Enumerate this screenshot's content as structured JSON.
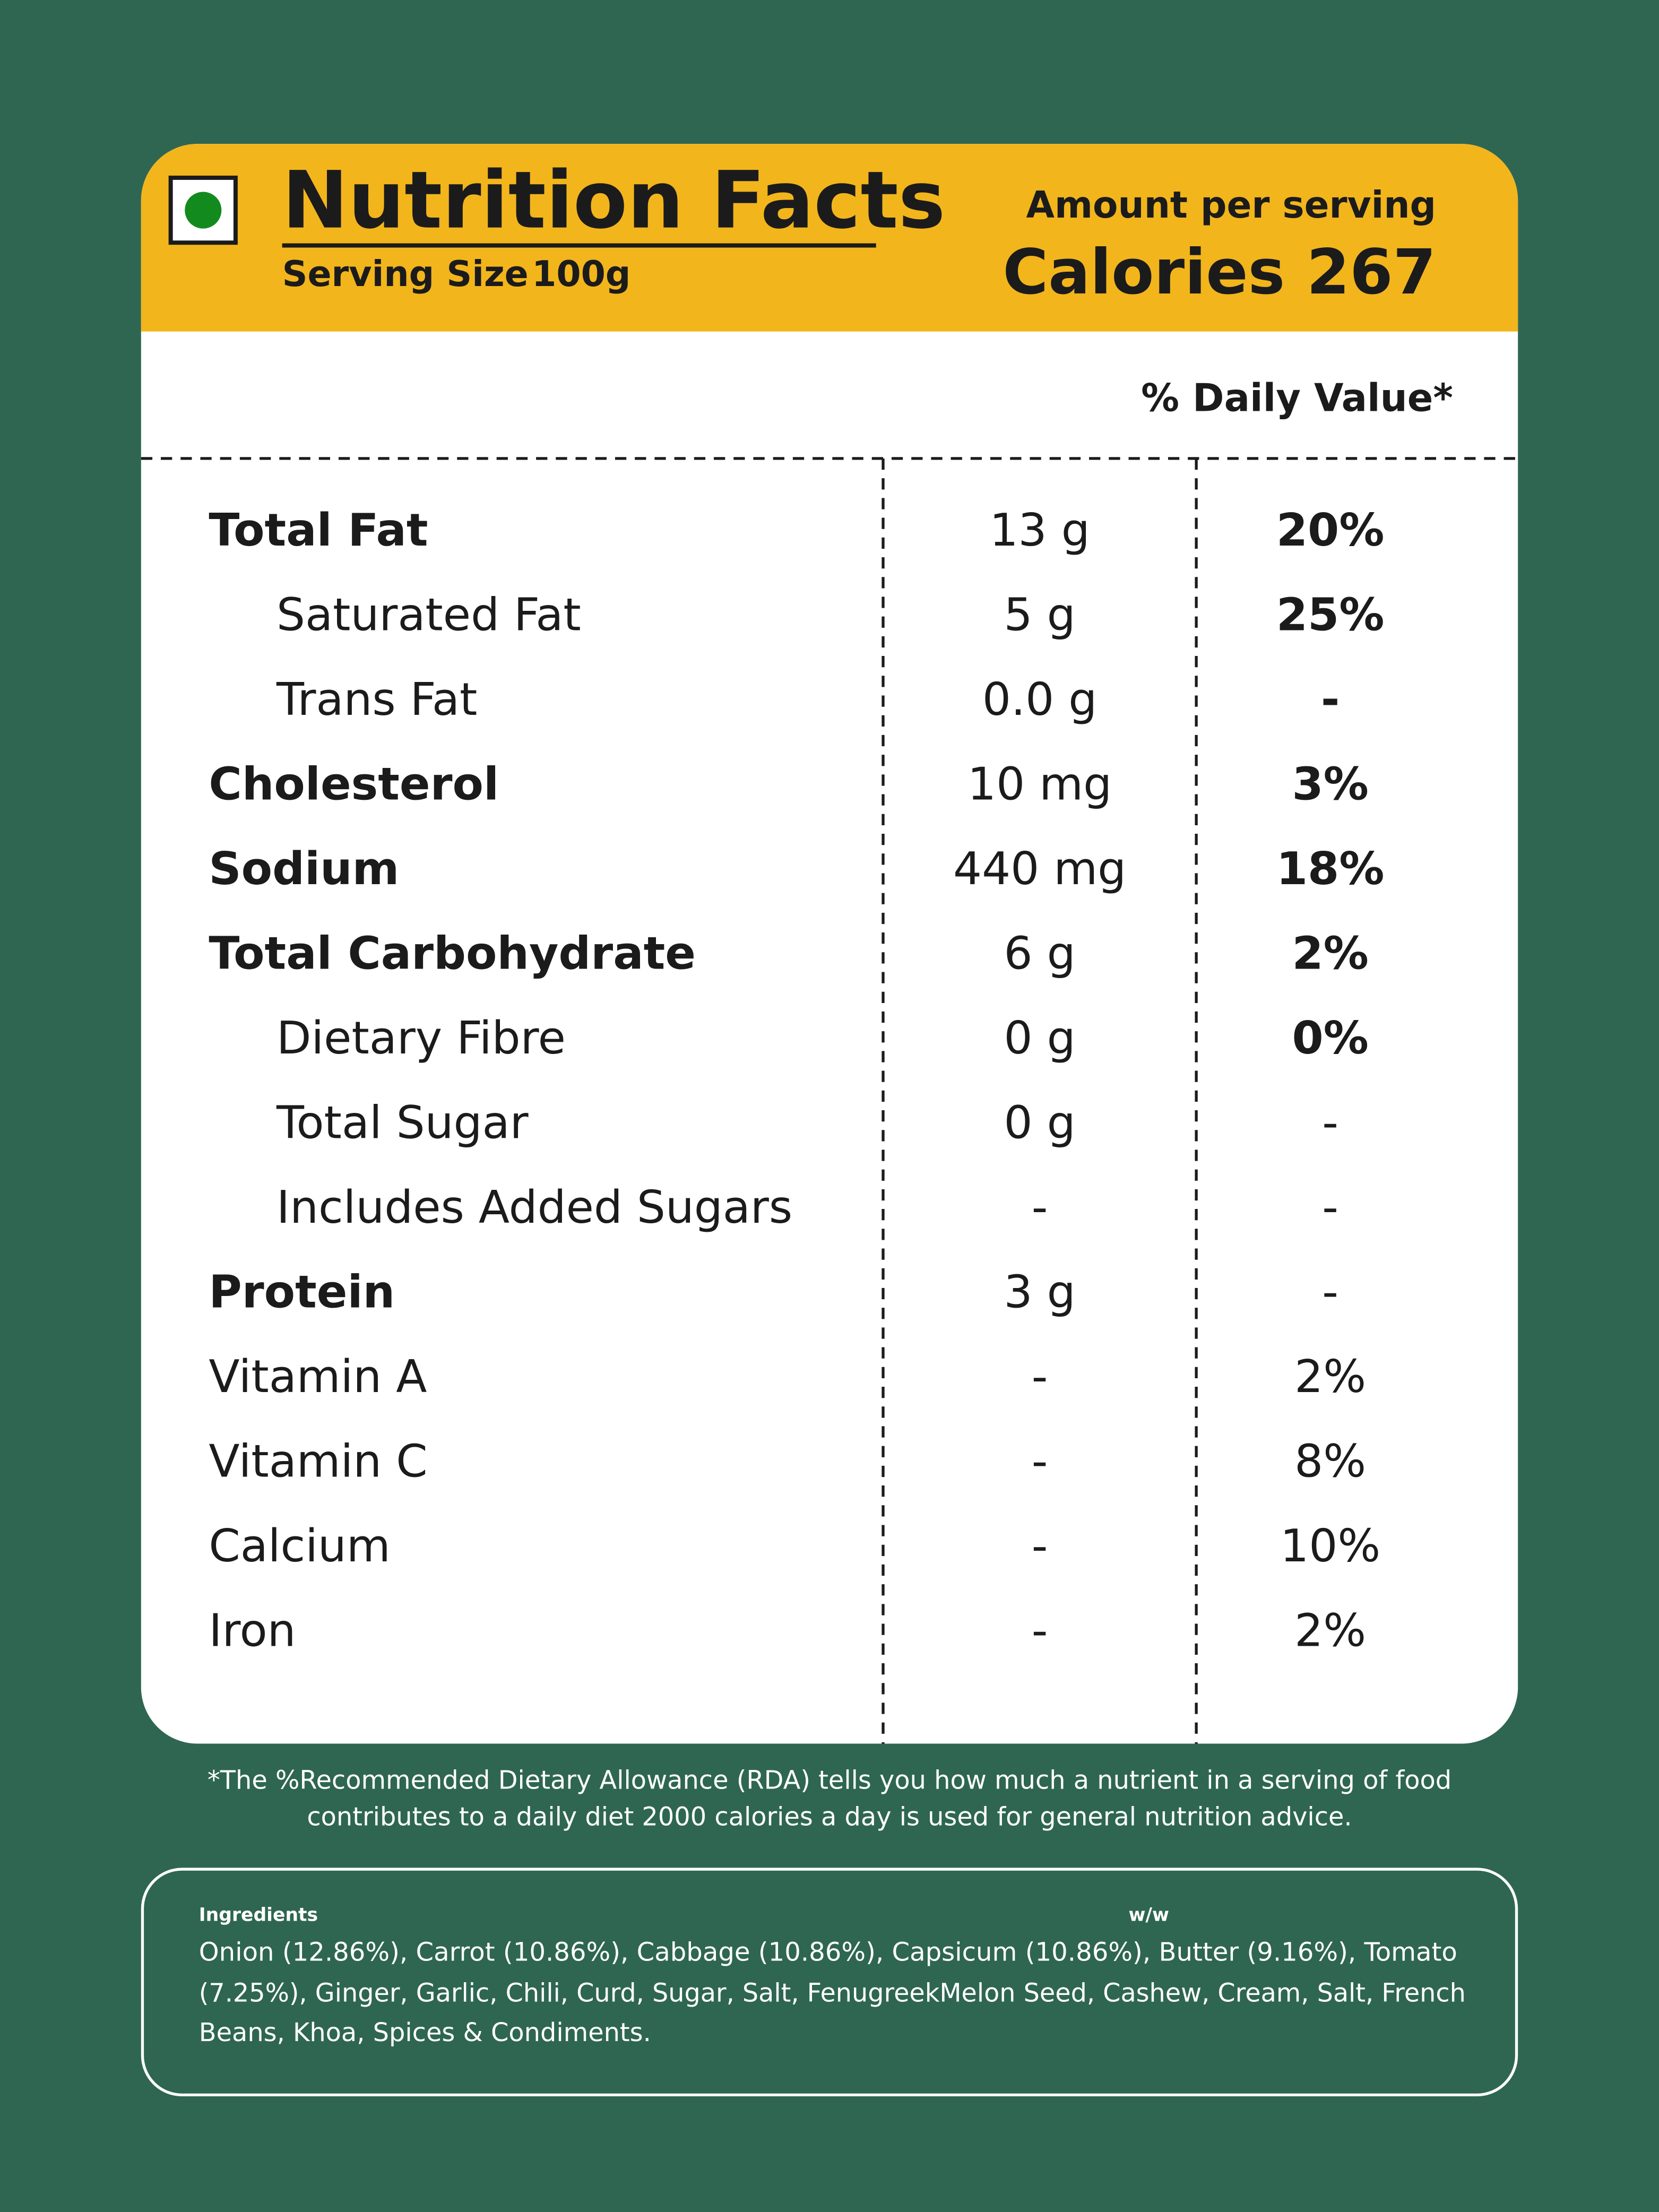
{
  "header": {
    "title": "Nutrition Facts",
    "serving_size_label": "Serving Size",
    "serving_size": "100g",
    "amount_per_serving": "Amount per serving",
    "calories": "Calories 267"
  },
  "daily_value_heading": "% Daily Value*",
  "rows": [
    {
      "label": "Total Fat",
      "amount": "13 g",
      "daily_value": "20%",
      "label_bold": true,
      "indent": false,
      "dv_bold": true
    },
    {
      "label": "Saturated Fat",
      "amount": "5 g",
      "daily_value": "25%",
      "label_bold": false,
      "indent": true,
      "dv_bold": true
    },
    {
      "label": "Trans Fat",
      "amount": "0.0 g",
      "daily_value": "-",
      "label_bold": false,
      "indent": true,
      "dv_bold": true
    },
    {
      "label": "Cholesterol",
      "amount": "10 mg",
      "daily_value": "3%",
      "label_bold": true,
      "indent": false,
      "dv_bold": true
    },
    {
      "label": "Sodium",
      "amount": "440 mg",
      "daily_value": "18%",
      "label_bold": true,
      "indent": false,
      "dv_bold": true
    },
    {
      "label": "Total Carbohydrate",
      "amount": "6 g",
      "daily_value": "2%",
      "label_bold": true,
      "indent": false,
      "dv_bold": true
    },
    {
      "label": "Dietary Fibre",
      "amount": "0 g",
      "daily_value": "0%",
      "label_bold": false,
      "indent": true,
      "dv_bold": true
    },
    {
      "label": "Total Sugar",
      "amount": "0 g",
      "daily_value": "-",
      "label_bold": false,
      "indent": true,
      "dv_bold": false
    },
    {
      "label": "Includes Added Sugars",
      "amount": "-",
      "daily_value": "-",
      "label_bold": false,
      "indent": true,
      "dv_bold": false
    },
    {
      "label": "Protein",
      "amount": "3 g",
      "daily_value": "-",
      "label_bold": true,
      "indent": false,
      "dv_bold": false
    },
    {
      "label": "Vitamin A",
      "amount": "-",
      "daily_value": "2%",
      "label_bold": false,
      "indent": false,
      "dv_bold": false
    },
    {
      "label": "Vitamin C",
      "amount": "-",
      "daily_value": "8%",
      "label_bold": false,
      "indent": false,
      "dv_bold": false
    },
    {
      "label": "Calcium",
      "amount": "-",
      "daily_value": "10%",
      "label_bold": false,
      "indent": false,
      "dv_bold": false
    },
    {
      "label": "Iron",
      "amount": "-",
      "daily_value": "2%",
      "label_bold": false,
      "indent": false,
      "dv_bold": false
    }
  ],
  "footnote": [
    "*The %Recommended Dietary Allowance (RDA) tells you how much a nutrient in a serving of food",
    "contributes to a daily diet 2000 calories a day is used for general nutrition advice."
  ],
  "ingredients": {
    "heading": "Ingredients",
    "unit": "w/w",
    "lines": [
      "Onion (12.86%), Carrot (10.86%), Cabbage (10.86%), Capsicum (10.86%), Butter (9.16%), Tomato",
      "(7.25%), Ginger, Garlic, Chili, Curd, Sugar, Salt, FenugreekMelon Seed, Cashew, Cream, Salt, French",
      "Beans, Khoa, Spices & Condiments."
    ]
  }
}
